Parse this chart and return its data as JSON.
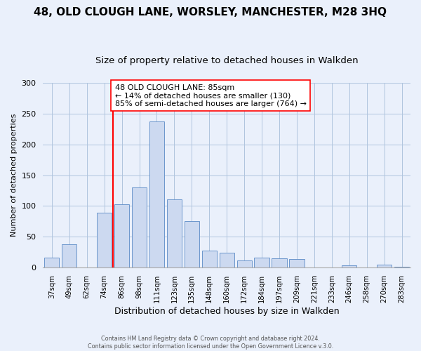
{
  "title": "48, OLD CLOUGH LANE, WORSLEY, MANCHESTER, M28 3HQ",
  "subtitle": "Size of property relative to detached houses in Walkden",
  "xlabel": "Distribution of detached houses by size in Walkden",
  "ylabel": "Number of detached properties",
  "footer_line1": "Contains HM Land Registry data © Crown copyright and database right 2024.",
  "footer_line2": "Contains public sector information licensed under the Open Government Licence v.3.0.",
  "bar_labels": [
    "37sqm",
    "49sqm",
    "62sqm",
    "74sqm",
    "86sqm",
    "98sqm",
    "111sqm",
    "123sqm",
    "135sqm",
    "148sqm",
    "160sqm",
    "172sqm",
    "184sqm",
    "197sqm",
    "209sqm",
    "221sqm",
    "233sqm",
    "246sqm",
    "258sqm",
    "270sqm",
    "283sqm"
  ],
  "bar_values": [
    16,
    38,
    0,
    89,
    103,
    130,
    237,
    111,
    76,
    28,
    24,
    12,
    16,
    15,
    14,
    0,
    0,
    4,
    0,
    5,
    2
  ],
  "bar_color": "#ccd9f0",
  "bar_edge_color": "#6b96cc",
  "vline_x_index": 4,
  "vline_color": "red",
  "annotation_title": "48 OLD CLOUGH LANE: 85sqm",
  "annotation_line1": "← 14% of detached houses are smaller (130)",
  "annotation_line2": "85% of semi-detached houses are larger (764) →",
  "annotation_box_color": "white",
  "annotation_box_edge_color": "red",
  "ylim": [
    0,
    300
  ],
  "yticks": [
    0,
    50,
    100,
    150,
    200,
    250,
    300
  ],
  "plot_bg_color": "#eaf0fb",
  "figure_bg_color": "#eaf0fb",
  "title_fontsize": 11,
  "subtitle_fontsize": 9.5,
  "bar_width": 0.85
}
